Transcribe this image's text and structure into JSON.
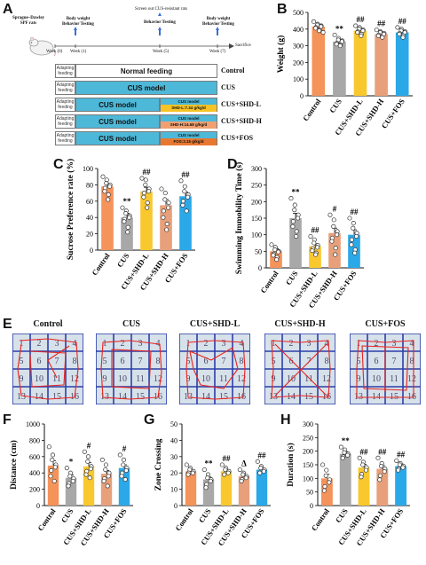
{
  "panel_labels": {
    "a": "A",
    "b": "B",
    "c": "C",
    "d": "D",
    "e": "E",
    "f": "F",
    "g": "G",
    "h": "H"
  },
  "schematic": {
    "rat_label": "Sprague–Dawley\nSPF rats",
    "week0": "Week (0)",
    "week1": "Week (1)",
    "week5": "Week (5)",
    "week7": "Week (7)",
    "sacrifice": "Sacrifice",
    "screen_note": "Screen out CUS-resistant rats",
    "bw_bt_1": "Body weight\nBehavior Testing",
    "bt_5": "Behavior Testing",
    "bw_bt_7": "Body weight\nBehavior Testing",
    "rows": [
      {
        "adapt": "Adapting\nfeeding",
        "main": "Normal feeding",
        "label": "Control",
        "style": "normal",
        "drug": "",
        "drug_color": ""
      },
      {
        "adapt": "Adapting\nfeeding",
        "main": "CUS model",
        "label": "CUS",
        "style": "cus",
        "drug": "",
        "drug_color": ""
      },
      {
        "adapt": "Adapting\nfeeding",
        "main": "CUS model",
        "label": "CUS+SHD-L",
        "style": "cus",
        "drug_top": "CUS model",
        "drug": "SHD-L:7.34 g/kg/d",
        "drug_color": "#f7c325"
      },
      {
        "adapt": "Adapting\nfeeding",
        "main": "CUS model",
        "label": "CUS+SHD-H",
        "style": "cus",
        "drug_top": "CUS model",
        "drug": "SHD-H:14.68 g/kg/d",
        "drug_color": "#f0a070"
      },
      {
        "adapt": "Adapting\nfeeding",
        "main": "CUS model",
        "label": "CUS+FOS",
        "style": "cus",
        "drug_top": "CUS model",
        "drug": "FOS:3.15 g/kg/d",
        "drug_color": "#e87830"
      }
    ]
  },
  "colors": {
    "Control": "#f4935a",
    "CUS": "#a8a8a8",
    "CUS+SHD-L": "#f9c82f",
    "CUS+SHD-H": "#e8a07a",
    "CUS+FOS": "#2ba8e8"
  },
  "groups": [
    "Control",
    "CUS",
    "CUS+SHD-L",
    "CUS+SHD-H",
    "CUS+FOS"
  ],
  "chart_data": [
    {
      "panel": "B",
      "type": "bar",
      "ylabel": "Weight (g)",
      "ylim": [
        0,
        500
      ],
      "yticks": [
        0,
        100,
        200,
        300,
        400,
        500
      ],
      "categories": [
        "Control",
        "CUS",
        "CUS+SHD-L",
        "CUS+SHD-H",
        "CUS+FOS"
      ],
      "values": [
        415,
        325,
        390,
        370,
        380
      ],
      "errors": [
        12,
        10,
        10,
        9,
        10
      ],
      "annotations": [
        "",
        "**",
        "##",
        "##",
        "##"
      ],
      "points": [
        [
          445,
          430,
          425,
          420,
          415,
          410,
          405,
          395,
          390,
          380
        ],
        [
          365,
          345,
          335,
          330,
          325,
          315,
          310,
          305,
          300
        ],
        [
          420,
          410,
          400,
          395,
          390,
          385,
          380,
          370,
          360
        ],
        [
          395,
          385,
          380,
          375,
          370,
          365,
          360,
          350
        ],
        [
          410,
          400,
          390,
          385,
          380,
          375,
          370,
          360,
          350
        ]
      ]
    },
    {
      "panel": "C",
      "type": "bar",
      "ylabel": "Sucrose Preference rate (%)",
      "ylim": [
        0,
        100
      ],
      "yticks": [
        0,
        20,
        40,
        60,
        80,
        100
      ],
      "categories": [
        "Control",
        "CUS",
        "CUS+SHD-L",
        "CUS+SHD-H",
        "CUS+FOS"
      ],
      "values": [
        78,
        40,
        72,
        55,
        66
      ],
      "errors": [
        4,
        5,
        5,
        7,
        5
      ],
      "annotations": [
        "",
        "**",
        "##",
        "",
        "##"
      ],
      "points": [
        [
          90,
          86,
          82,
          80,
          78,
          76,
          72,
          68,
          62
        ],
        [
          52,
          48,
          45,
          42,
          40,
          38,
          35,
          28,
          22
        ],
        [
          88,
          86,
          80,
          75,
          72,
          70,
          65,
          58,
          52
        ],
        [
          75,
          70,
          62,
          58,
          52,
          48,
          40,
          32,
          25
        ],
        [
          85,
          78,
          72,
          68,
          65,
          60,
          55,
          48
        ]
      ]
    },
    {
      "panel": "D",
      "type": "bar",
      "ylabel": "Swimming Immobility Time (s)",
      "ylim": [
        0,
        300
      ],
      "yticks": [
        0,
        50,
        100,
        150,
        200,
        250,
        300
      ],
      "categories": [
        "Control",
        "CUS",
        "CUS+SHD-L",
        "CUS+SHD-H",
        "CUS+FOS"
      ],
      "values": [
        50,
        150,
        65,
        105,
        100
      ],
      "errors": [
        8,
        15,
        8,
        15,
        15
      ],
      "annotations": [
        "",
        "**",
        "##",
        "#",
        "##"
      ],
      "points": [
        [
          70,
          62,
          55,
          50,
          48,
          42,
          38,
          32,
          25
        ],
        [
          210,
          190,
          175,
          160,
          150,
          140,
          125,
          110,
          95
        ],
        [
          95,
          85,
          75,
          68,
          62,
          58,
          52,
          45,
          40
        ],
        [
          160,
          145,
          125,
          110,
          100,
          90,
          80,
          60,
          40
        ],
        [
          150,
          135,
          120,
          105,
          95,
          85,
          70,
          55,
          45
        ]
      ]
    },
    {
      "panel": "F",
      "type": "bar",
      "ylabel": "Distance (cm)",
      "ylim": [
        0,
        1000
      ],
      "yticks": [
        0,
        200,
        400,
        600,
        800,
        1000
      ],
      "categories": [
        "Control",
        "CUS",
        "CUS+SHD-L",
        "CUS+SHD-H",
        "CUS+FOS"
      ],
      "values": [
        490,
        340,
        480,
        390,
        460
      ],
      "errors": [
        60,
        35,
        45,
        40,
        40
      ],
      "annotations": [
        "",
        "*",
        "#",
        "",
        "#"
      ],
      "points": [
        [
          720,
          620,
          560,
          500,
          470,
          430,
          360,
          300
        ],
        [
          460,
          400,
          360,
          330,
          300,
          270,
          240
        ],
        [
          660,
          600,
          540,
          480,
          450,
          420,
          380,
          340
        ],
        [
          560,
          500,
          440,
          400,
          360,
          330,
          300,
          240
        ],
        [
          620,
          560,
          500,
          460,
          430,
          400,
          360,
          320
        ]
      ]
    },
    {
      "panel": "G",
      "type": "bar",
      "ylabel": "Zone Crossing",
      "ylim": [
        0,
        50
      ],
      "yticks": [
        0,
        10,
        20,
        30,
        40,
        50
      ],
      "categories": [
        "Control",
        "CUS",
        "CUS+SHD-L",
        "CUS+SHD-H",
        "CUS+FOS"
      ],
      "values": [
        21,
        16,
        21,
        18,
        22
      ],
      "errors": [
        1,
        1.5,
        1,
        1,
        1
      ],
      "annotations": [
        "",
        "**",
        "##",
        "Δ",
        "##"
      ],
      "points": [
        [
          25,
          23,
          22,
          21,
          20,
          20,
          19
        ],
        [
          22,
          19,
          17,
          16,
          15,
          13,
          11
        ],
        [
          25,
          23,
          22,
          21,
          20,
          19
        ],
        [
          22,
          20,
          19,
          18,
          17,
          16,
          15
        ],
        [
          27,
          24,
          23,
          22,
          21,
          20
        ]
      ]
    },
    {
      "panel": "H",
      "type": "bar",
      "ylabel": "Duration (s)",
      "ylim": [
        0,
        300
      ],
      "yticks": [
        0,
        50,
        100,
        150,
        200,
        250,
        300
      ],
      "categories": [
        "Control",
        "CUS",
        "CUS+SHD-L",
        "CUS+SHD-H",
        "CUS+FOS"
      ],
      "values": [
        100,
        190,
        140,
        135,
        145
      ],
      "errors": [
        15,
        8,
        12,
        12,
        8
      ],
      "annotations": [
        "",
        "**",
        "##",
        "##",
        "##"
      ],
      "points": [
        [
          150,
          130,
          110,
          95,
          85,
          70,
          55
        ],
        [
          215,
          205,
          195,
          190,
          185,
          180,
          175
        ],
        [
          175,
          160,
          150,
          140,
          130,
          115,
          105
        ],
        [
          175,
          155,
          145,
          135,
          125,
          110,
          95
        ],
        [
          165,
          155,
          150,
          145,
          140,
          135,
          130
        ]
      ]
    }
  ],
  "open_field": {
    "titles": [
      "Control",
      "CUS",
      "CUS+SHD-L",
      "CUS+SHD-H",
      "CUS+FOS"
    ],
    "numbers": [
      "1",
      "2",
      "3",
      "4",
      "5",
      "6",
      "7",
      "8",
      "9",
      "10",
      "11",
      "12",
      "13",
      "14",
      "15",
      "16"
    ]
  }
}
